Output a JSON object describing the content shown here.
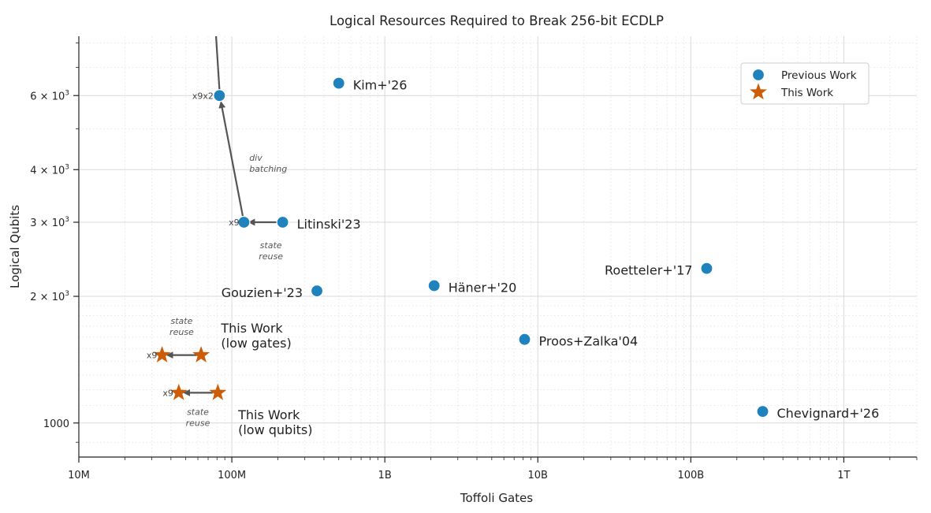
{
  "chart_data": {
    "type": "scatter",
    "title": "Logical Resources Required to Break 256-bit ECDLP",
    "xlabel": "Toffoli Gates",
    "ylabel": "Logical Qubits",
    "xscale": "log",
    "yscale": "log",
    "xlim": [
      10000000,
      3000000000000
    ],
    "ylim": [
      830,
      8300
    ],
    "grid": true,
    "legend_position": "upper-right",
    "x_ticks": [
      {
        "value": 10000000,
        "label": "10M"
      },
      {
        "value": 100000000,
        "label": "100M"
      },
      {
        "value": 1000000000,
        "label": "1B"
      },
      {
        "value": 10000000000,
        "label": "10B"
      },
      {
        "value": 100000000000,
        "label": "100B"
      },
      {
        "value": 1000000000000,
        "label": "1T"
      }
    ],
    "y_ticks": [
      {
        "value": 1000,
        "base": "1000",
        "exp": ""
      },
      {
        "value": 2000,
        "base": "2 × 10",
        "exp": "3"
      },
      {
        "value": 3000,
        "base": "3 × 10",
        "exp": "3"
      },
      {
        "value": 4000,
        "base": "4 × 10",
        "exp": "3"
      },
      {
        "value": 6000,
        "base": "6 × 10",
        "exp": "3"
      }
    ],
    "colors": {
      "previous": "#1f82bd",
      "this": "#cc5c06",
      "arrow": "#555555"
    },
    "legend": [
      {
        "key": "previous",
        "label": "Previous Work",
        "marker": "circle"
      },
      {
        "key": "this",
        "label": "This Work",
        "marker": "star"
      }
    ],
    "series": [
      {
        "key": "previous",
        "marker": "circle",
        "points": [
          {
            "x": 500000000,
            "y": 6420,
            "label": "Kim+'26",
            "label_side": "right"
          },
          {
            "x": 215000000,
            "y": 3000,
            "label": "Litinski'23",
            "label_side": "right"
          },
          {
            "x": 360000000,
            "y": 2060,
            "label": "Gouzien+'23",
            "label_side": "left"
          },
          {
            "x": 2100000000,
            "y": 2120,
            "label": "Häner+'20",
            "label_side": "right"
          },
          {
            "x": 8200000000,
            "y": 1580,
            "label": "Proos+Zalka'04",
            "label_side": "right"
          },
          {
            "x": 127000000000,
            "y": 2330,
            "label": "Roetteler+'17",
            "label_side": "left"
          },
          {
            "x": 295000000000,
            "y": 1065,
            "label": "Chevignard+'26",
            "label_side": "right"
          },
          {
            "x": 120000000000,
            "y": 0,
            "label": "",
            "label_side": "none",
            "hidden": true
          },
          {
            "x": 120000000,
            "y": 3000,
            "label": "",
            "label_side": "none"
          },
          {
            "x": 83000000,
            "y": 6000,
            "label": "",
            "label_side": "none"
          }
        ]
      },
      {
        "key": "this",
        "marker": "star",
        "points": [
          {
            "x": 63000000,
            "y": 1450,
            "label": "",
            "label_side": "none"
          },
          {
            "x": 35000000,
            "y": 1450,
            "label": "",
            "label_side": "none"
          },
          {
            "x": 81000000,
            "y": 1180,
            "label": "",
            "label_side": "none"
          },
          {
            "x": 45000000,
            "y": 1180,
            "label": "",
            "label_side": "none"
          }
        ]
      }
    ],
    "group_labels": [
      {
        "x": 85000000,
        "y": 1640,
        "lines": [
          "This Work",
          "(low gates)"
        ]
      },
      {
        "x": 110000000,
        "y": 1020,
        "lines": [
          "This Work",
          "(low qubits)"
        ]
      }
    ],
    "arrows": [
      {
        "from": [
          200000000,
          3000
        ],
        "to": [
          130000000,
          3000
        ]
      },
      {
        "from": [
          118000000,
          3100
        ],
        "to": [
          85000000,
          5780
        ]
      },
      {
        "from": [
          83000000,
          6200
        ],
        "to": [
          77000000,
          9500
        ]
      },
      {
        "from": [
          59000000,
          1450
        ],
        "to": [
          38000000,
          1450
        ]
      },
      {
        "from": [
          75000000,
          1180
        ],
        "to": [
          49000000,
          1180
        ]
      }
    ],
    "annotations": [
      {
        "x": 130000000,
        "y": 4200,
        "text": [
          "div",
          "batching"
        ],
        "anchor": "start"
      },
      {
        "x": 180000000,
        "y": 2600,
        "text": [
          "state",
          "reuse"
        ],
        "anchor": "middle"
      },
      {
        "x": 47000000,
        "y": 1720,
        "text": [
          "state",
          "reuse"
        ],
        "anchor": "middle"
      },
      {
        "x": 60000000,
        "y": 1045,
        "text": [
          "state",
          "reuse"
        ],
        "anchor": "middle"
      }
    ],
    "multipliers": [
      {
        "x": 112000000,
        "y": 3000,
        "text": "x9"
      },
      {
        "x": 76000000,
        "y": 6000,
        "text": "x9x2"
      },
      {
        "x": 32500000,
        "y": 1450,
        "text": "x9"
      },
      {
        "x": 41500000,
        "y": 1180,
        "text": "x9"
      }
    ]
  }
}
